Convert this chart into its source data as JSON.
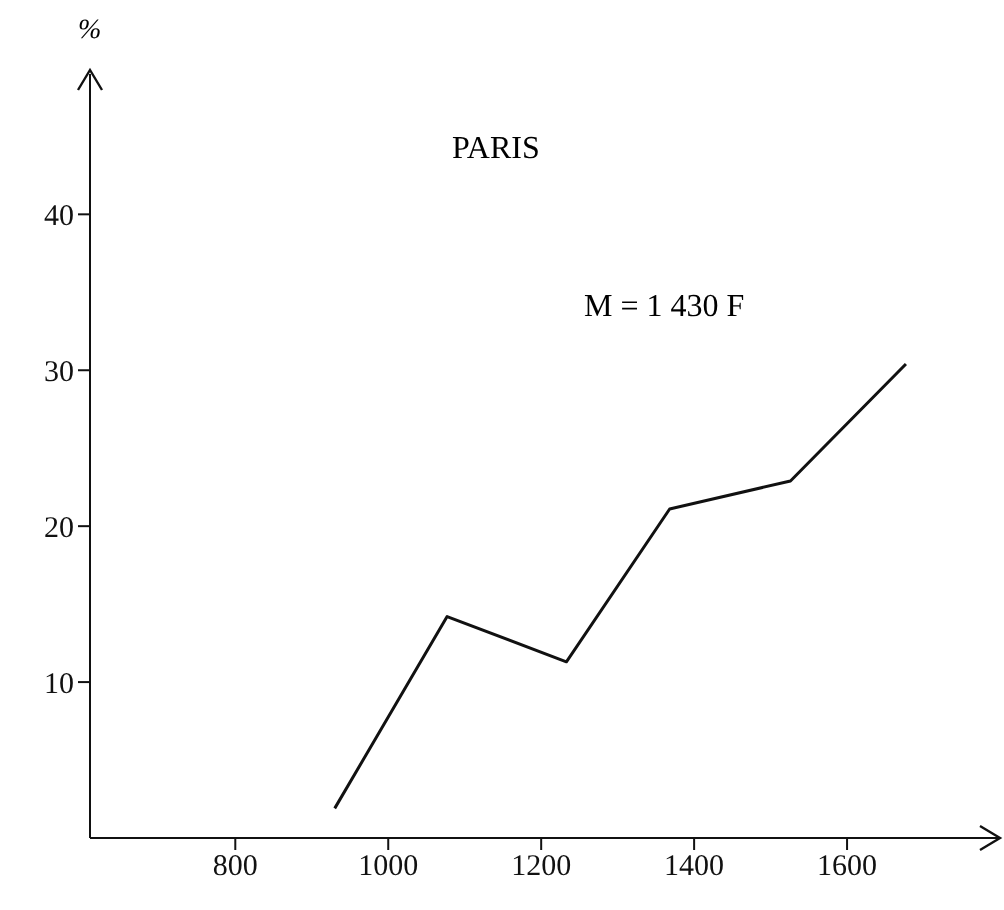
{
  "chart_data": {
    "type": "line",
    "title": "PARIS",
    "ylabel": "%",
    "annotations": [
      "M = 1 430 F"
    ],
    "x": [
      930,
      1077,
      1233,
      1368,
      1526,
      1677
    ],
    "series": [
      {
        "color": "#111111",
        "values": [
          1.9,
          14.2,
          11.3,
          21.1,
          22.9,
          30.4
        ]
      }
    ],
    "xlim": [
      610,
      1800
    ],
    "xticks": [
      800,
      1000,
      1200,
      1400,
      1600
    ],
    "ylim": [
      0,
      49
    ],
    "yticks": [
      10,
      20,
      30,
      40
    ],
    "grid": false,
    "legend": false,
    "marker": "none",
    "line_style": "solid"
  }
}
